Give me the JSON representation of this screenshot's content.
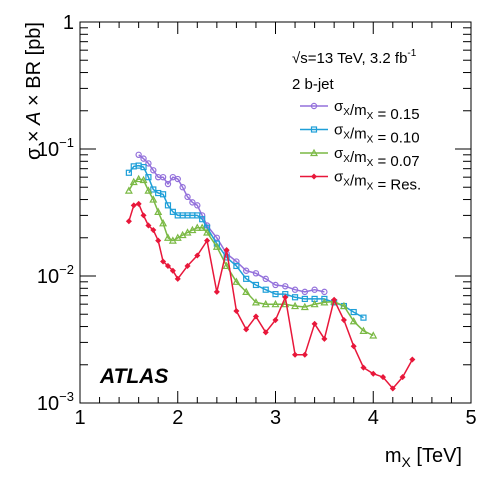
{
  "chart_data": {
    "type": "line",
    "xlabel": "m_X [TeV]",
    "ylabel": "σ × A × BR [pb]",
    "xlim": [
      1,
      5
    ],
    "ylim": [
      0.001,
      1
    ],
    "yscale": "log",
    "grid": false,
    "legend_placement": "top-right",
    "x_ticks": [
      "1",
      "2",
      "3",
      "4",
      "5"
    ],
    "y_ticks": [
      {
        "value": 1,
        "base": "1",
        "exp": ""
      },
      {
        "value": 0.1,
        "base": "10",
        "exp": "−1"
      },
      {
        "value": 0.01,
        "base": "10",
        "exp": "−2"
      },
      {
        "value": 0.001,
        "base": "10",
        "exp": "−3"
      }
    ],
    "annotations": {
      "energy_lumi": "√s=13 TeV, 3.2 fb",
      "lumi_exp": "-1",
      "category": "2 b-jet",
      "experiment": "ATLAS"
    },
    "series": [
      {
        "name": "σX/mX = 0.15",
        "color": "#9370db",
        "marker": "circle",
        "x": [
          1.6,
          1.65,
          1.7,
          1.75,
          1.8,
          1.85,
          1.9,
          1.95,
          2.0,
          2.05,
          2.1,
          2.15,
          2.2,
          2.25,
          2.3,
          2.4,
          2.5,
          2.6,
          2.7,
          2.8,
          2.9,
          3.0,
          3.1,
          3.2,
          3.3,
          3.4,
          3.5
        ],
        "y": [
          0.09,
          0.084,
          0.077,
          0.068,
          0.06,
          0.06,
          0.053,
          0.06,
          0.058,
          0.05,
          0.042,
          0.038,
          0.036,
          0.03,
          0.025,
          0.02,
          0.015,
          0.013,
          0.011,
          0.0105,
          0.0095,
          0.0085,
          0.0083,
          0.0078,
          0.0075,
          0.0078,
          0.0075
        ]
      },
      {
        "name": "σX/mX = 0.10",
        "color": "#1e9fd8",
        "marker": "square",
        "x": [
          1.5,
          1.55,
          1.6,
          1.65,
          1.7,
          1.75,
          1.8,
          1.85,
          1.9,
          1.95,
          2.0,
          2.05,
          2.1,
          2.15,
          2.2,
          2.25,
          2.3,
          2.4,
          2.5,
          2.6,
          2.7,
          2.8,
          2.9,
          3.0,
          3.1,
          3.2,
          3.3,
          3.4,
          3.5,
          3.6,
          3.7,
          3.8,
          3.9
        ],
        "y": [
          0.065,
          0.073,
          0.074,
          0.072,
          0.06,
          0.048,
          0.045,
          0.044,
          0.036,
          0.032,
          0.03,
          0.03,
          0.03,
          0.03,
          0.03,
          0.028,
          0.024,
          0.018,
          0.014,
          0.012,
          0.0095,
          0.0085,
          0.0078,
          0.0072,
          0.0072,
          0.0068,
          0.0066,
          0.0066,
          0.0066,
          0.0062,
          0.0058,
          0.0052,
          0.0047
        ]
      },
      {
        "name": "σX/mX = 0.07",
        "color": "#7ab944",
        "marker": "triangle",
        "x": [
          1.5,
          1.55,
          1.6,
          1.65,
          1.7,
          1.75,
          1.8,
          1.85,
          1.9,
          1.95,
          2.0,
          2.05,
          2.1,
          2.15,
          2.2,
          2.25,
          2.3,
          2.4,
          2.5,
          2.6,
          2.7,
          2.8,
          2.9,
          3.0,
          3.1,
          3.2,
          3.3,
          3.4,
          3.5,
          3.6,
          3.7,
          3.8,
          3.9,
          4.0
        ],
        "y": [
          0.047,
          0.055,
          0.058,
          0.057,
          0.047,
          0.04,
          0.032,
          0.026,
          0.02,
          0.019,
          0.02,
          0.021,
          0.022,
          0.023,
          0.024,
          0.024,
          0.022,
          0.017,
          0.012,
          0.009,
          0.0075,
          0.0062,
          0.006,
          0.006,
          0.006,
          0.0058,
          0.0057,
          0.006,
          0.0062,
          0.0063,
          0.0058,
          0.0044,
          0.0037,
          0.0034
        ]
      },
      {
        "name": "σX/mX = Res.",
        "color": "#e8173a",
        "marker": "plus",
        "x": [
          1.5,
          1.55,
          1.6,
          1.65,
          1.7,
          1.75,
          1.8,
          1.85,
          1.9,
          1.95,
          2.0,
          2.1,
          2.2,
          2.3,
          2.4,
          2.5,
          2.6,
          2.7,
          2.8,
          2.9,
          3.0,
          3.1,
          3.2,
          3.3,
          3.4,
          3.5,
          3.6,
          3.7,
          3.8,
          3.9,
          4.0,
          4.1,
          4.2,
          4.3,
          4.4
        ],
        "y": [
          0.027,
          0.036,
          0.037,
          0.03,
          0.025,
          0.023,
          0.019,
          0.013,
          0.012,
          0.011,
          0.0095,
          0.012,
          0.0145,
          0.019,
          0.0075,
          0.016,
          0.0053,
          0.0038,
          0.0048,
          0.0036,
          0.0045,
          0.0068,
          0.0024,
          0.0024,
          0.0042,
          0.0032,
          0.0065,
          0.0045,
          0.0028,
          0.0019,
          0.0017,
          0.0016,
          0.0013,
          0.0016,
          0.0022
        ]
      }
    ]
  }
}
